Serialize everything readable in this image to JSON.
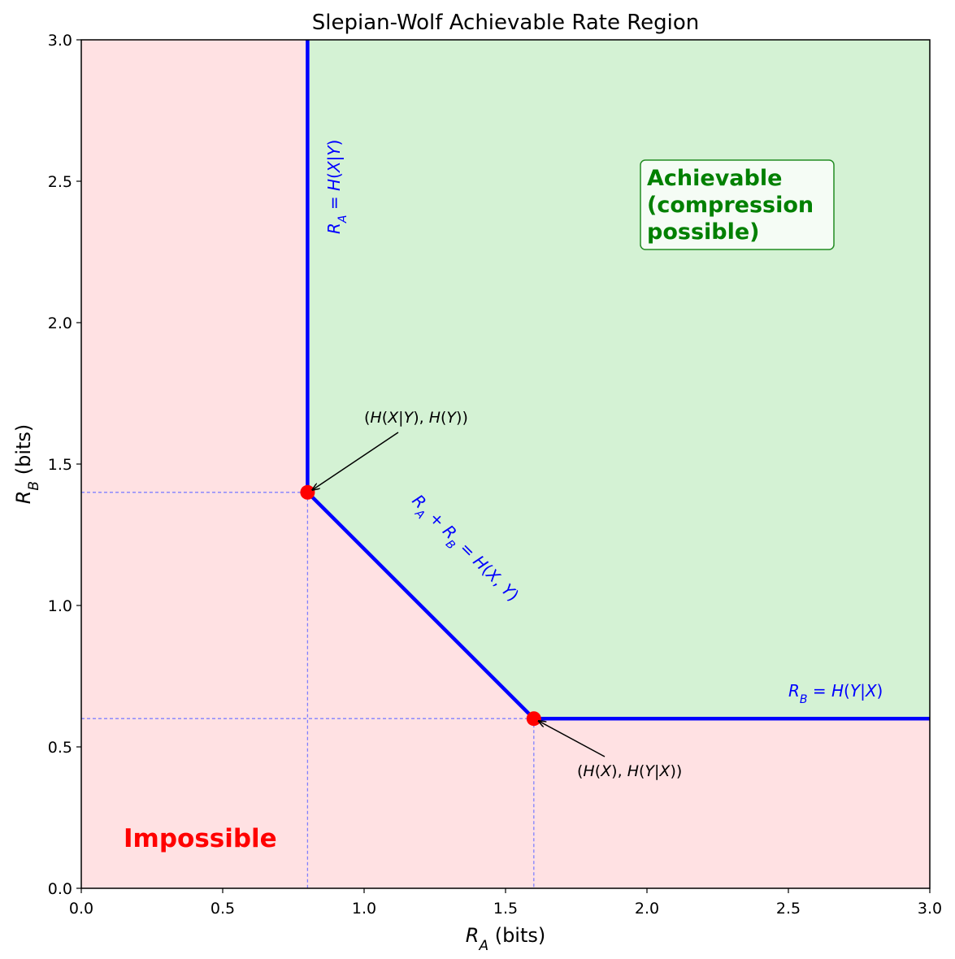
{
  "chart_data": {
    "type": "area",
    "title": "Slepian-Wolf Achievable Rate Region",
    "xlabel": {
      "symbol": "R",
      "sub": "A",
      "unit": " (bits)"
    },
    "ylabel": {
      "symbol": "R",
      "sub": "B",
      "unit": " (bits)"
    },
    "xlim": [
      0,
      3
    ],
    "ylim": [
      0,
      3
    ],
    "xticks": [
      "0.0",
      "0.5",
      "1.0",
      "1.5",
      "2.0",
      "2.5",
      "3.0"
    ],
    "yticks": [
      "0.0",
      "0.5",
      "1.0",
      "1.5",
      "2.0",
      "2.5",
      "3.0"
    ],
    "grid": false,
    "colors": {
      "achievable": "#d4f2d4",
      "impossible": "#ffe1e3",
      "boundary": "#0000ff",
      "corner_point": "#ff0000",
      "guide": "#8080ff"
    },
    "boundary": {
      "x": [
        0.8,
        0.8,
        1.6,
        3.0
      ],
      "y": [
        3.0,
        1.4,
        0.6,
        0.6
      ]
    },
    "corner_points": [
      {
        "x": 0.8,
        "y": 1.4,
        "label": "(H(X|Y), H(Y))"
      },
      {
        "x": 1.6,
        "y": 0.6,
        "label": "(H(X), H(Y|X))"
      }
    ],
    "boundary_labels": [
      {
        "text": "R_A = H(X|Y)"
      },
      {
        "text": "R_A + R_B = H(X, Y)"
      },
      {
        "text": "R_B = H(Y|X)"
      }
    ],
    "region_labels": {
      "achievable": [
        "Achievable",
        "(compression",
        "possible)"
      ],
      "impossible": "Impossible"
    }
  }
}
